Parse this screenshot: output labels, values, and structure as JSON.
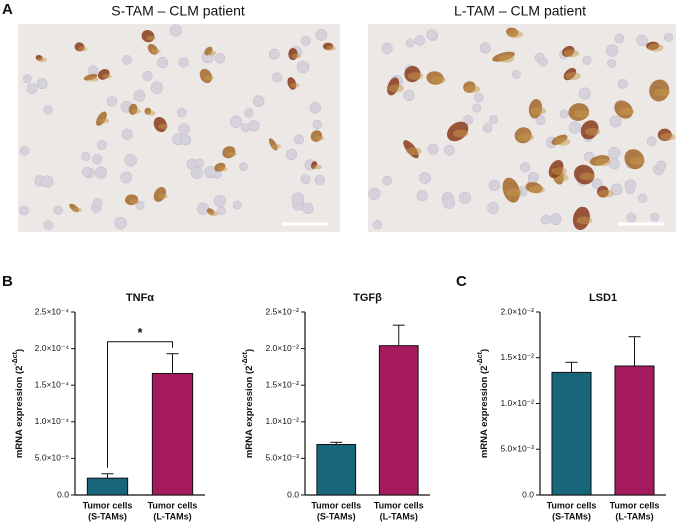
{
  "panels": [
    "A",
    "B",
    "C"
  ],
  "images": [
    {
      "title": "S-TAM – CLM patient"
    },
    {
      "title": "L-TAM – CLM patient"
    }
  ],
  "chart_data": [
    {
      "type": "bar",
      "title": "TNFα",
      "y_label": {
        "text": "mRNA expression (2",
        "superscript": "-Δct",
        "suffix": ")"
      },
      "categories": [
        [
          "Tumor cells",
          "(S-TAMs)"
        ],
        [
          "Tumor cells",
          "(L-TAMs)"
        ]
      ],
      "values": [
        2.3e-05,
        0.000166
      ],
      "errors": [
        6e-06,
        2.7e-05
      ],
      "colors": [
        "#17667a",
        "#a5195d"
      ],
      "significance": "*",
      "ylim": [
        0,
        0.00025
      ],
      "yticks": [
        {
          "value": 0,
          "label": "0.0"
        },
        {
          "value": 5e-05,
          "label": "5.0×10⁻⁵"
        },
        {
          "value": 0.0001,
          "label": "1.0×10⁻⁴"
        },
        {
          "value": 0.00015,
          "label": "1.5×10⁻⁴"
        },
        {
          "value": 0.0002,
          "label": "2.0×10⁻⁴"
        },
        {
          "value": 0.00025,
          "label": "2.5×10⁻⁴"
        }
      ]
    },
    {
      "type": "bar",
      "title": "TGFβ",
      "y_label": {
        "text": "mRNA expression (2",
        "superscript": "-Δct",
        "suffix": ")"
      },
      "categories": [
        [
          "Tumor cells",
          "(S-TAMs)"
        ],
        [
          "Tumor cells",
          "(L-TAMs)"
        ]
      ],
      "values": [
        0.0069,
        0.0204
      ],
      "errors": [
        0.0003,
        0.0028
      ],
      "colors": [
        "#17667a",
        "#a5195d"
      ],
      "ylim": [
        0,
        0.025
      ],
      "yticks": [
        {
          "value": 0,
          "label": "0.0"
        },
        {
          "value": 0.005,
          "label": "5.0×10⁻³"
        },
        {
          "value": 0.01,
          "label": "1.0×10⁻²"
        },
        {
          "value": 0.015,
          "label": "1.5×10⁻²"
        },
        {
          "value": 0.02,
          "label": "2.0×10⁻²"
        },
        {
          "value": 0.025,
          "label": "2.5×10⁻²"
        }
      ]
    },
    {
      "type": "bar",
      "title": "LSD1",
      "y_label": {
        "text": "mRNA expression (2",
        "superscript": "-Δct",
        "suffix": ")"
      },
      "categories": [
        [
          "Tumor cells",
          "(S-TAMs)"
        ],
        [
          "Tumor cells",
          "(L-TAMs)"
        ]
      ],
      "values": [
        0.0134,
        0.0141
      ],
      "errors": [
        0.0011,
        0.0032
      ],
      "colors": [
        "#17667a",
        "#a5195d"
      ],
      "ylim": [
        0,
        0.02
      ],
      "yticks": [
        {
          "value": 0,
          "label": "0.0"
        },
        {
          "value": 0.005,
          "label": "5.0×10⁻³"
        },
        {
          "value": 0.01,
          "label": "1.0×10⁻²"
        },
        {
          "value": 0.015,
          "label": "1.5×10⁻²"
        },
        {
          "value": 0.02,
          "label": "2.0×10⁻²"
        }
      ]
    }
  ]
}
